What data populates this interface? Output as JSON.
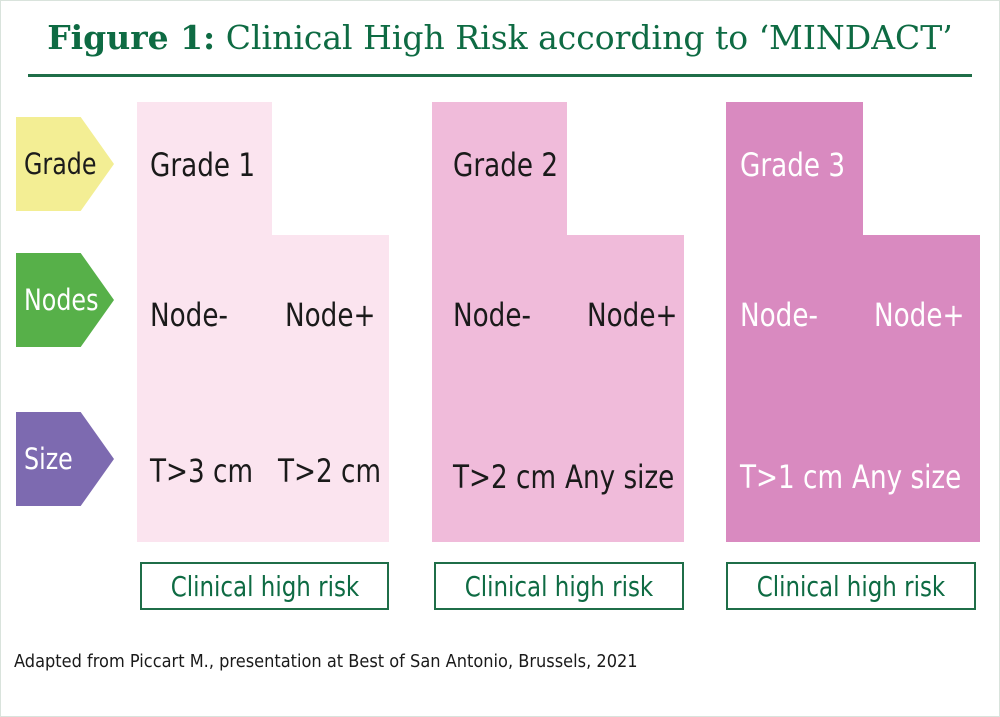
{
  "figure": {
    "title_lead": "Figure 1:",
    "title_rest": "Clinical High Risk according to ‘MINDACT’",
    "source": "Adapted from Piccart M., presentation at Best of San Antonio, Brussels, 2021"
  },
  "rows": {
    "grade": "Grade",
    "nodes": "Nodes",
    "size": "Size"
  },
  "groups": [
    {
      "grade": "Grade 1",
      "node_neg": "Node-",
      "node_pos": "Node+",
      "size_neg": "T>3 cm",
      "size_pos": "T>2 cm",
      "result": "Clinical high risk"
    },
    {
      "grade": "Grade 2",
      "node_neg": "Node-",
      "node_pos": "Node+",
      "size_neg": "T>2 cm",
      "size_pos": "Any size",
      "result": "Clinical high risk"
    },
    {
      "grade": "Grade 3",
      "node_neg": "Node-",
      "node_pos": "Node+",
      "size_neg": "T>1 cm",
      "size_pos": "Any size",
      "result": "Clinical high risk"
    }
  ],
  "colors": {
    "title_green": "#0e6b43",
    "grade_yellow": "#f3ee94",
    "nodes_green": "#57b049",
    "size_purple": "#7d6ab0",
    "grade1_pink": "#fbe4ef",
    "grade2_pink": "#f0bbda",
    "grade3_pink": "#d98ac0"
  }
}
